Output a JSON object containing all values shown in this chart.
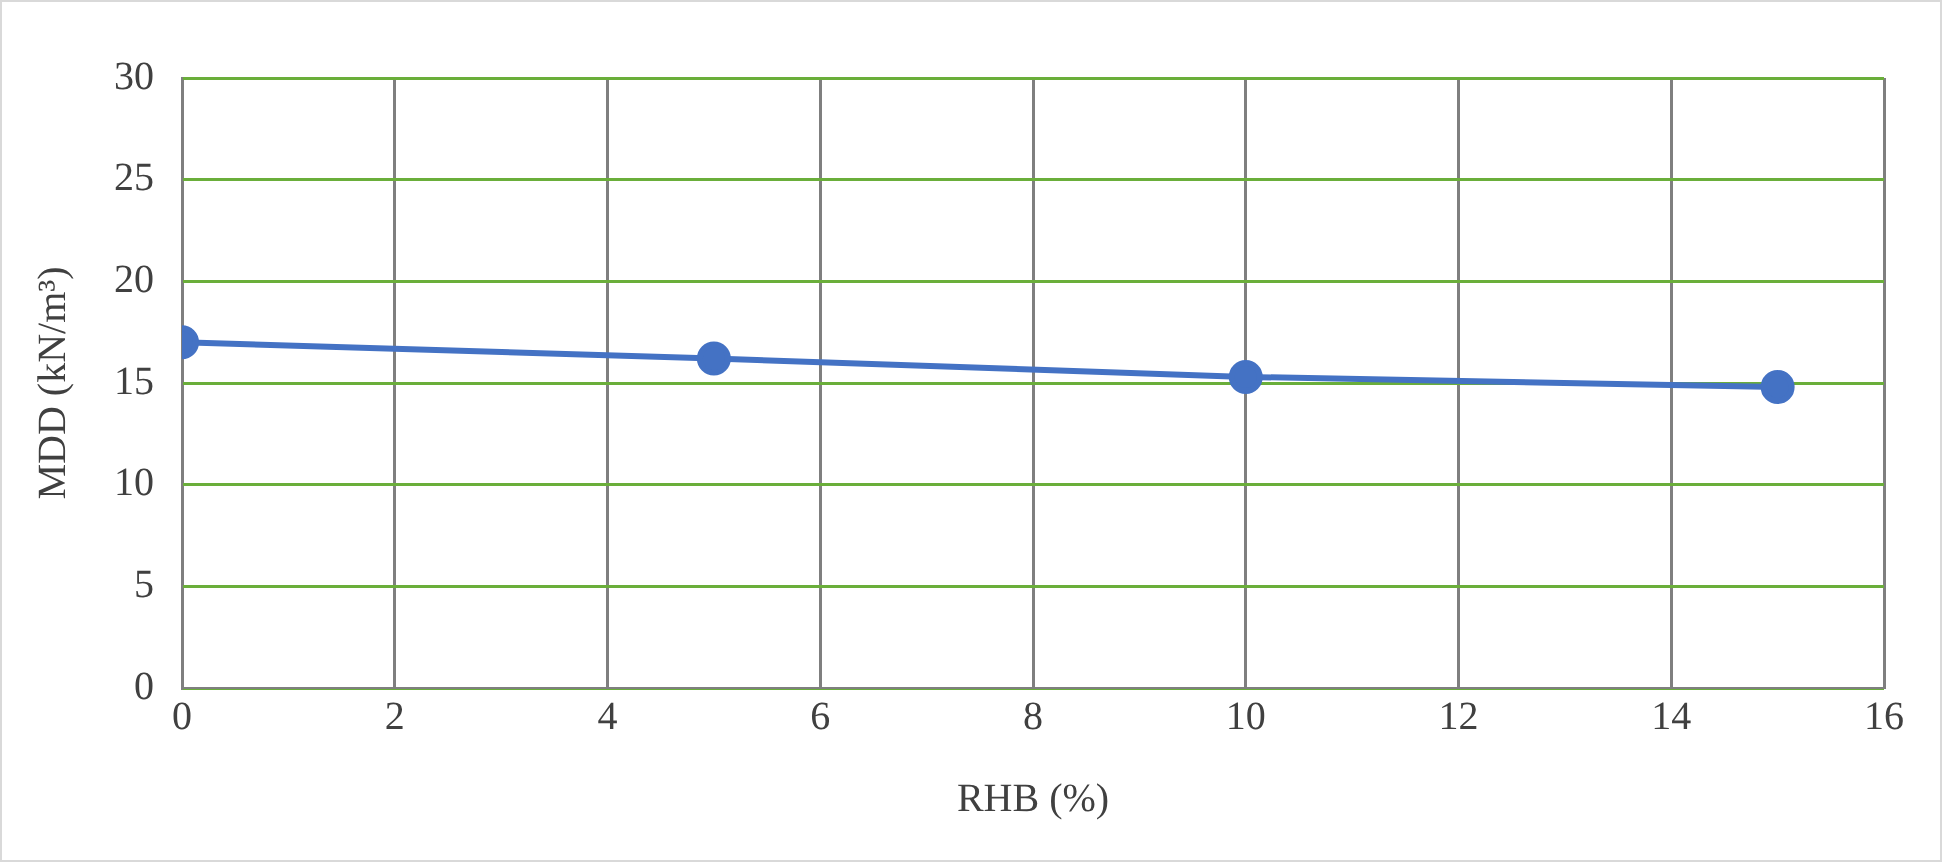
{
  "chart_data": {
    "type": "line",
    "xlabel": "RHB (%)",
    "ylabel": "MDD (kN/m³)",
    "x": [
      0,
      5,
      10,
      15
    ],
    "series": [
      {
        "color": "#4472c4",
        "values": [
          17,
          16.2,
          15.3,
          14.8
        ]
      }
    ],
    "xlim": [
      0,
      16
    ],
    "xticks": [
      0,
      2,
      4,
      6,
      8,
      10,
      12,
      14,
      16
    ],
    "ylim": [
      0,
      30
    ],
    "yticks": [
      0,
      5,
      10,
      15,
      20,
      25,
      30
    ],
    "grid": true,
    "marker": "circle",
    "line_style": "solid",
    "legend": false
  }
}
